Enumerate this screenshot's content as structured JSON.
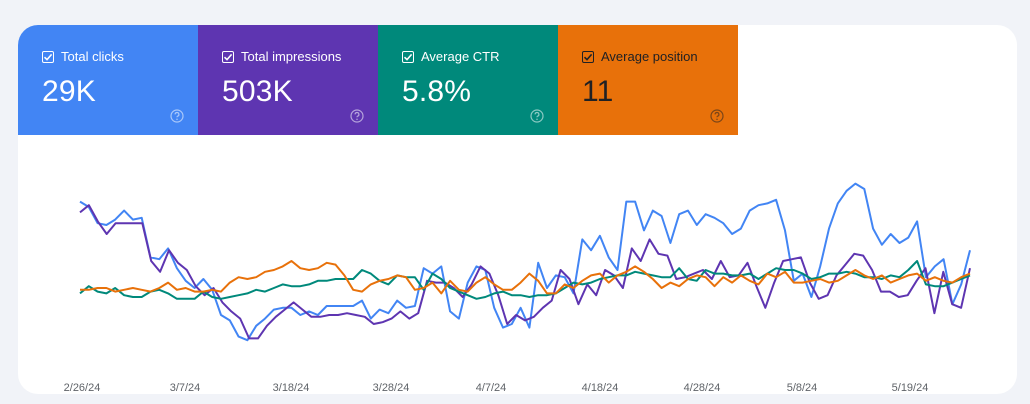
{
  "metrics": [
    {
      "label": "Total clicks",
      "value": "29K",
      "bg": "#4285f4",
      "fg": "#ffffff",
      "icon": "help-circle-icon"
    },
    {
      "label": "Total impressions",
      "value": "503K",
      "bg": "#5e35b1",
      "fg": "#ffffff",
      "icon": "help-circle-icon"
    },
    {
      "label": "Average CTR",
      "value": "5.8%",
      "bg": "#00897b",
      "fg": "#ffffff",
      "icon": "help-circle-icon"
    },
    {
      "label": "Average position",
      "value": "11",
      "bg": "#e8710a",
      "fg": "#202124",
      "icon": "help-circle-icon"
    }
  ],
  "chart_data": {
    "type": "line",
    "x_tick_labels": [
      "2/26/24",
      "3/7/24",
      "3/18/24",
      "3/28/24",
      "4/7/24",
      "4/18/24",
      "4/28/24",
      "5/8/24",
      "5/19/24"
    ],
    "grid": false,
    "y_axis_labels_shown": false,
    "series": [
      {
        "color": "#4285f4",
        "values": [
          58,
          55,
          46,
          45,
          48,
          53,
          48,
          49,
          27,
          26,
          32,
          21,
          14,
          10,
          15,
          9,
          -5,
          -8,
          -17,
          -19,
          -11,
          -7,
          -2,
          -1,
          -1,
          -5,
          -3,
          -5,
          0,
          0,
          0,
          0,
          3,
          -7,
          -2,
          -4,
          3,
          -1,
          0,
          21,
          18,
          22,
          -3,
          -7,
          13,
          22,
          20,
          -1,
          -12,
          -10,
          -1,
          -12,
          24,
          10,
          17,
          16,
          7,
          37,
          31,
          39,
          27,
          20,
          58,
          58,
          42,
          53,
          50,
          35,
          51,
          53,
          45,
          51,
          49,
          46,
          40,
          43,
          53,
          56,
          57,
          59,
          42,
          14,
          18,
          5,
          22,
          43,
          57,
          64,
          68,
          65,
          43,
          34,
          40,
          35,
          38,
          47,
          16,
          22,
          26,
          1,
          12,
          31
        ]
      },
      {
        "color": "#5e35b1",
        "values": [
          52,
          56,
          47,
          40,
          46,
          46,
          46,
          46,
          25,
          19,
          31,
          24,
          20,
          11,
          6,
          10,
          2,
          -3,
          -7,
          -18,
          -18,
          -11,
          -6,
          -2,
          2,
          -2,
          -6,
          -6,
          -5,
          -5,
          -4,
          -5,
          -6,
          -10,
          -9,
          -7,
          -3,
          -7,
          -4,
          14,
          13,
          13,
          10,
          5,
          12,
          22,
          18,
          6,
          -10,
          -5,
          -8,
          -6,
          -1,
          3,
          20,
          15,
          1,
          12,
          6,
          20,
          17,
          10,
          32,
          25,
          37,
          29,
          28,
          15,
          16,
          18,
          20,
          15,
          25,
          16,
          17,
          24,
          11,
          -1,
          13,
          25,
          26,
          27,
          13,
          4,
          6,
          17,
          23,
          29,
          28,
          20,
          8,
          8,
          5,
          6,
          14,
          21,
          -4,
          19,
          1,
          -1,
          21
        ]
      },
      {
        "color": "#00897b",
        "values": [
          7,
          11,
          8,
          7,
          10,
          6,
          5,
          5,
          8,
          9,
          7,
          4,
          4,
          4,
          8,
          5,
          4,
          5,
          6,
          7,
          9,
          8,
          10,
          12,
          11,
          11,
          12,
          14,
          14,
          15,
          15,
          15,
          20,
          18,
          14,
          12,
          17,
          16,
          16,
          9,
          18,
          15,
          10,
          8,
          6,
          4,
          5,
          7,
          8,
          6,
          6,
          5,
          6,
          6,
          7,
          10,
          13,
          12,
          13,
          15,
          16,
          17,
          17,
          19,
          18,
          17,
          16,
          16,
          21,
          15,
          14,
          20,
          18,
          18,
          17,
          17,
          18,
          15,
          18,
          21,
          20,
          20,
          18,
          15,
          16,
          18,
          18,
          19,
          18,
          16,
          16,
          15,
          17,
          16,
          20,
          25,
          12,
          11,
          11,
          13,
          15,
          17
        ]
      },
      {
        "color": "#e8710a",
        "values": [
          9,
          9,
          10,
          10,
          8,
          9,
          10,
          9,
          8,
          10,
          13,
          9,
          10,
          8,
          8,
          9,
          8,
          13,
          16,
          15,
          16,
          19,
          20,
          22,
          25,
          21,
          20,
          21,
          24,
          23,
          17,
          9,
          8,
          12,
          14,
          15,
          17,
          16,
          9,
          10,
          13,
          7,
          14,
          9,
          8,
          13,
          16,
          12,
          9,
          9,
          13,
          18,
          14,
          7,
          7,
          12,
          10,
          14,
          17,
          18,
          13,
          17,
          19,
          22,
          19,
          15,
          10,
          13,
          11,
          15,
          17,
          16,
          11,
          16,
          13,
          17,
          14,
          12,
          18,
          16,
          19,
          13,
          13,
          14,
          15,
          13,
          14,
          17,
          20,
          17,
          15,
          17,
          13,
          15,
          17,
          18,
          14,
          16,
          14,
          13,
          16,
          18
        ]
      }
    ]
  }
}
